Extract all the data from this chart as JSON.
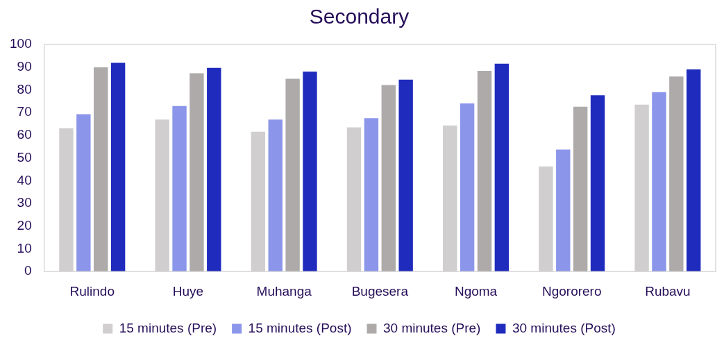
{
  "chart_data": {
    "type": "bar",
    "title": "Secondary",
    "categories": [
      "Rulindo",
      "Huye",
      "Muhanga",
      "Bugesera",
      "Ngoma",
      "Ngororero",
      "Rubavu"
    ],
    "series": [
      {
        "name": "15 minutes (Pre)",
        "color": "#d0cece",
        "values": [
          63.1,
          66.9,
          61.6,
          63.5,
          64.3,
          46.3,
          73.5
        ]
      },
      {
        "name": "15 minutes (Post)",
        "color": "#8b95ea",
        "values": [
          69.3,
          72.9,
          66.9,
          67.5,
          74.0,
          53.7,
          79.0
        ]
      },
      {
        "name": "30 minutes (Pre)",
        "color": "#aeaaaa",
        "values": [
          89.9,
          87.3,
          84.9,
          82.1,
          88.4,
          72.6,
          85.9
        ]
      },
      {
        "name": "30 minutes (Post)",
        "color": "#1f2bbd",
        "values": [
          91.9,
          89.7,
          88.0,
          84.5,
          91.5,
          77.6,
          89.0
        ]
      }
    ],
    "ylim": [
      0,
      100
    ],
    "yticks": [
      0,
      10,
      20,
      30,
      40,
      50,
      60,
      70,
      80,
      90,
      100
    ],
    "grid": false,
    "legend": "bottom"
  }
}
